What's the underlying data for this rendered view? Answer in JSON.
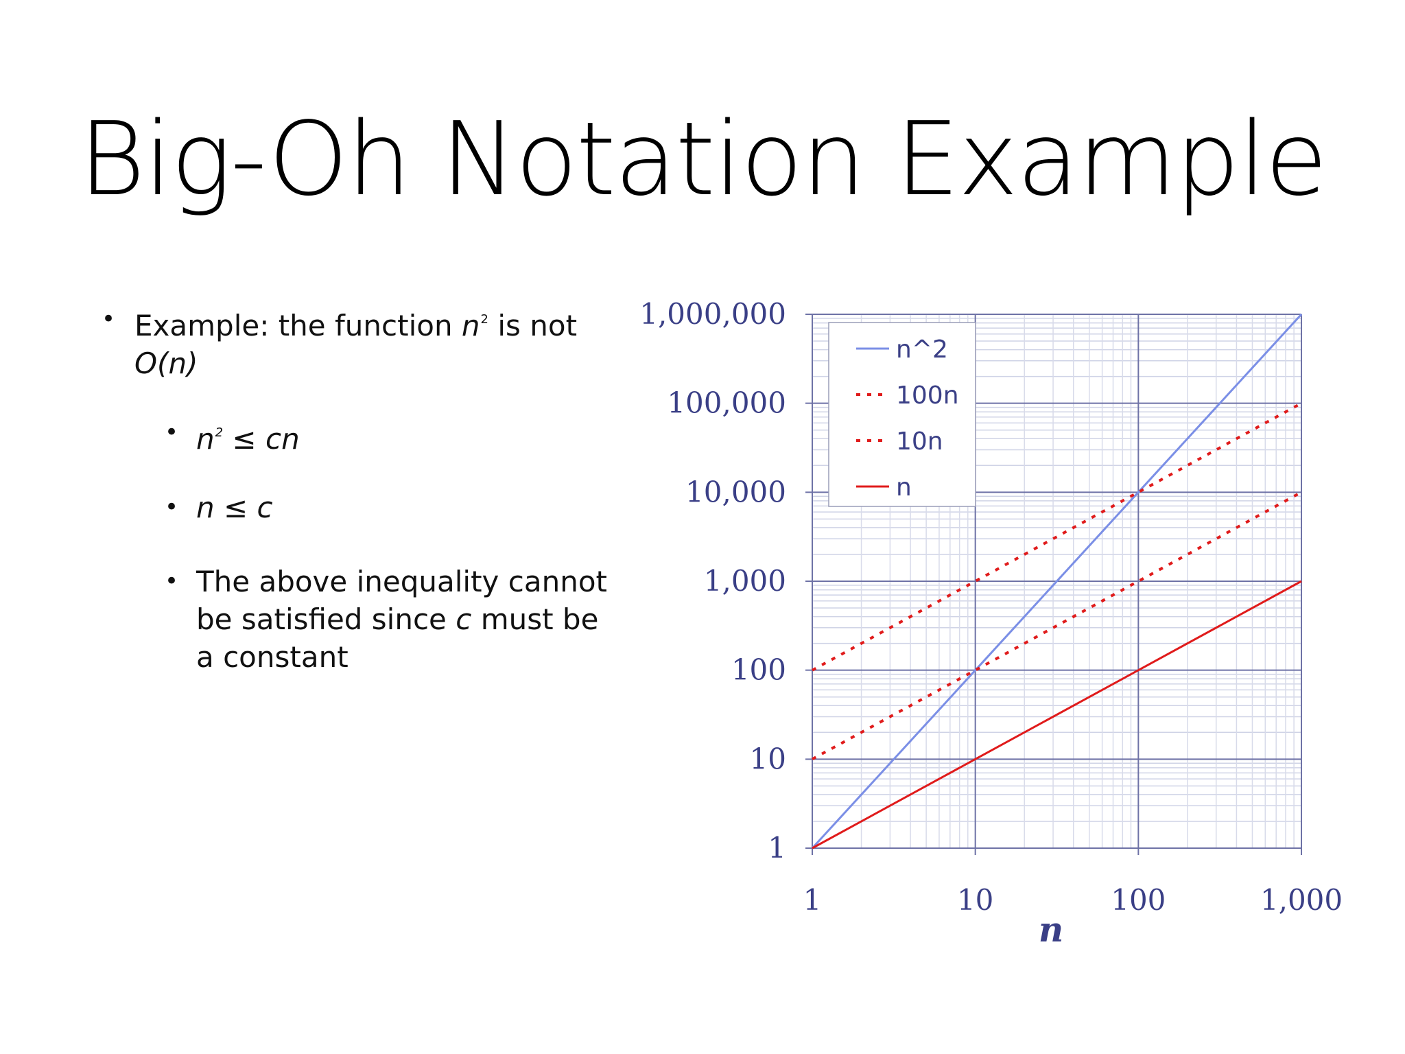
{
  "title": "Big-Oh Notation Example",
  "bullets": {
    "main": {
      "prefix": "Example:  the function ",
      "var": "n",
      "sup": "2",
      "suffix": " is not",
      "line2": "O(n)"
    },
    "sub1": {
      "var": "n",
      "sup": "2",
      "rest": " ≤ cn"
    },
    "sub2": {
      "text": "n ≤ c"
    },
    "sub3": {
      "part1": "The above inequality cannot",
      "part2a": "be satisfied since ",
      "part2b": "c",
      "part2c": " must be",
      "part3": "a constant"
    }
  },
  "chart_data": {
    "type": "line",
    "xscale": "log",
    "yscale": "log",
    "xlim": [
      1,
      1000
    ],
    "ylim": [
      1,
      1000000
    ],
    "xlabel": "n",
    "ylabel": "",
    "grid": true,
    "legend_position": "top-left",
    "x_ticks": [
      "1",
      "10",
      "100",
      "1,000"
    ],
    "y_ticks": [
      "1",
      "10",
      "100",
      "1,000",
      "10,000",
      "100,000",
      "1,000,000"
    ],
    "x": [
      1,
      10,
      100,
      1000
    ],
    "series": [
      {
        "name": "n^2",
        "values": [
          1,
          100,
          10000,
          1000000
        ],
        "color": "#7b8fe6",
        "style": "solid"
      },
      {
        "name": "100n",
        "values": [
          100,
          1000,
          10000,
          100000
        ],
        "color": "#e01b1b",
        "style": "dotted"
      },
      {
        "name": "10n",
        "values": [
          10,
          100,
          1000,
          10000
        ],
        "color": "#e01b1b",
        "style": "dotted"
      },
      {
        "name": "n",
        "values": [
          1,
          10,
          100,
          1000
        ],
        "color": "#e01b1b",
        "style": "solid"
      }
    ]
  }
}
